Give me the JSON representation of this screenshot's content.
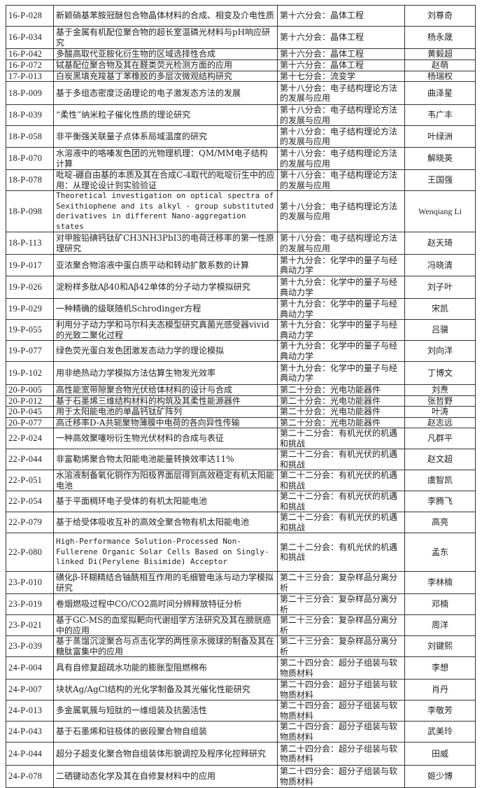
{
  "rows": [
    {
      "code": "16-P-028",
      "title": "新颖硝基苯胺冠醚包合物晶体材料的合成、相变及介电性质",
      "session": "第十六分会：晶体工程",
      "author": "刘尊奇"
    },
    {
      "code": "16-P-034",
      "title": "基于金属有机配位聚合物的超长室温磷光材料与pH响应研究",
      "session": "第十六分会：晶体工程",
      "author": "杨永晟"
    },
    {
      "code": "16-P-042",
      "title": "多酸高取代亚胺化衍生物的区域选择性合成",
      "session": "第十六分会：晶体工程",
      "author": "黄毅超"
    },
    {
      "code": "16-P-072",
      "title": "铽基配位聚合物及其在醛类荧光检测方面的应用",
      "session": "第十六分会：晶体工程",
      "author": "赵萌"
    },
    {
      "code": "17-P-013",
      "title": "白炭黑填充羧基丁苯橡胶的多层次微观结构研究",
      "session": "第十七分会：流变学",
      "author": "杨瑞权"
    },
    {
      "code": "18-P-009",
      "title": "基于多组态密度泛函理论的电子激发态方法的发展",
      "session": "第十八分会：电子结构理论方法的发展与应用",
      "author": "曲泽星"
    },
    {
      "code": "18-P-039",
      "title": "“柔性”纳米粒子催化性质的理论研究",
      "session": "第十八分会：电子结构理论方法的发展与应用",
      "author": "韦广丰"
    },
    {
      "code": "18-P-058",
      "title": "非平衡强关联量子点体系局域温度的研究",
      "session": "第十八分会：电子结构理论方法的发展与应用",
      "author": "叶绿洲"
    },
    {
      "code": "18-P-070",
      "title": "水溶液中的咯嗪发色团的光物理机理：QM/MM电子结构计算",
      "session": "第十八分会：电子结构理论方法的发展与应用",
      "author": "解晓英"
    },
    {
      "code": "18-P-078",
      "title": "吡啶-硼自由基的本质及其在合成C-4取代的吡啶衍生中的应用：从理论设计到实验验证",
      "session": "第十八分会：电子结构理论方法的发展与应用",
      "author": "王国强"
    },
    {
      "code": "18-P-098",
      "title": "Theoretical investigation on optical spectra of Sexithiophene and its alkyl - group substituted derivatives in different Nano-aggregation states",
      "session": "第十八分会：电子结构理论方法的发展与应用",
      "author": "Wenqiang Li"
    },
    {
      "code": "18-P-113",
      "title": "对甲胺铅碘钙钛矿CH3NH3PbI3的电荷迁移率的第一性原理研究",
      "session": "第十八分会：电子结构理论方法的发展与应用",
      "author": "赵天琦"
    },
    {
      "code": "19-P-017",
      "title": "亚浓聚合物溶液中蛋白质平动和转动扩散系数的计算",
      "session": "第十九分会：化学中的量子与经典动力学",
      "author": "冯晓清"
    },
    {
      "code": "19-P-026",
      "title": "淀粉样多肽Aβ40和Aβ42单体的分子动力学模拟研究",
      "session": "第十九分会：化学中的量子与经典动力学",
      "author": "刘子叶"
    },
    {
      "code": "19-P-029",
      "title": "一种精确的级联随机Schrodinger方程",
      "session": "第十九分会：化学中的量子与经典动力学",
      "author": "宋凯"
    },
    {
      "code": "19-P-055",
      "title": "利用分子动力学和马尔科夫态模型研究真菌光感受器vivid的光致二聚化过程",
      "session": "第十九分会：化学中的量子与经典动力学",
      "author": "吕骥"
    },
    {
      "code": "19-P-077",
      "title": "绿色荧光蛋白发色团激发态动力学的理论模拟",
      "session": "第十九分会：化学中的量子与经典动力学",
      "author": "刘向洋"
    },
    {
      "code": "19-P-102",
      "title": "用非绝热动力学模拟方法估算生物发光效率",
      "session": "第十九分会：化学中的量子与经典动力学",
      "author": "丁博文"
    },
    {
      "code": "20-P-005",
      "title": "高性能宽带隙聚合物光伏给体材料的设计与合成",
      "session": "第二十分会：光电功能器件",
      "author": "刘焘"
    },
    {
      "code": "20-P-012",
      "title": "基于石墨烯三维结构材料的构筑及其柔性能源器件",
      "session": "第二十分会：光电功能器件",
      "author": "张哲野"
    },
    {
      "code": "20-P-045",
      "title": "用于太阳能电池的单晶钙钛矿阵列",
      "session": "第二十分会：光电功能器件",
      "author": "叶涛"
    },
    {
      "code": "20-P-077",
      "title": "高迁移率D-A共轭聚物薄膜中电荷的各向异性传输",
      "session": "第二十分会：光电功能器件",
      "author": "赵志远"
    },
    {
      "code": "22-P-024",
      "title": "一种高效聚噻吩衍生物光伏材料的合成与表征",
      "session": "第二十二分会：有机光伏的机遇和挑战",
      "author": "凡群平"
    },
    {
      "code": "22-P-044",
      "title": "非富勒烯聚合物太阳能电池能量转换效率达11%",
      "session": "第二十二分会：有机光伏的机遇和挑战",
      "author": "赵文超"
    },
    {
      "code": "22-P-051",
      "title": "水溶液制备氧化铜作为阳极界面层得到高效稳定有机太阳能电池",
      "session": "第二十二分会：有机光伏的机遇和挑战",
      "author": "虞智凯"
    },
    {
      "code": "22-P-054",
      "title": "基于平面稠环电子受体的有机太阳能电池",
      "session": "第二十二分会：有机光伏的机遇和挑战",
      "author": "李腾飞"
    },
    {
      "code": "22-P-079",
      "title": "基于给受体吸收互补的高效全聚合物有机太阳能电池",
      "session": "第二十二分会：有机光伏的机遇和挑战",
      "author": "高亮"
    },
    {
      "code": "22-P-080",
      "title": "High-Performance Solution-Processed Non-Fullerene Organic Solar Cells Based on Singly-linked Di(Perylene Bisimide) Acceptor",
      "session": "第二十二分会：有机光伏的机遇和挑战",
      "author": "孟东"
    },
    {
      "code": "23-P-010",
      "title": "磺化β-环糊精结合铀酰相互作用的毛细管电泳与动力学模拟研究",
      "session": "第二十三分会：复杂样品分离分析",
      "author": "李林楠"
    },
    {
      "code": "23-P-019",
      "title": "卷烟燃吸过程中CO/CO2高时间分辨释放特征分析",
      "session": "第二十三分会：复杂样品分离分析",
      "author": "邓楠"
    },
    {
      "code": "23-P-021",
      "title": "基于GC-MS的血浆拟靶向代谢组学方法研究及其在膀胱癌中的应用",
      "session": "第二十三分会：复杂样品分离分析",
      "author": "周洋"
    },
    {
      "code": "23-P-039",
      "title": "基于蒸馏沉淀聚合与点击化学的两性亲水微球的制备及其在糖肽富集中的应用",
      "session": "第二十三分会：复杂样品分离分析",
      "author": "刘键熙"
    },
    {
      "code": "24-P-004",
      "title": "具有自修复超疏水功能的膨胀型阻燃棉布",
      "session": "第二十四分会：超分子组装与软物质材料",
      "author": "李想"
    },
    {
      "code": "24-P-007",
      "title": "块状Ag/AgCl结构的光化学制备及其光催化性能研究",
      "session": "第二十四分会：超分子组装与软物质材料",
      "author": "肖丹"
    },
    {
      "code": "24-P-013",
      "title": "多金属氧簇与短肽的一维组装及抗菌活性",
      "session": "第二十四分会：超分子组装与软物质材料",
      "author": "李敬芳"
    },
    {
      "code": "24-P-043",
      "title": "基于石墨烯和驻极体的嵌段聚合物自组装",
      "session": "第二十四分会：超分子组装与软物质材料",
      "author": "武美玲"
    },
    {
      "code": "24-P-044",
      "title": "超分子超支化聚合物自组装体形貌调控及程序化控释研究",
      "session": "第二十四分会：超分子组装与软物质材料",
      "author": "田威"
    },
    {
      "code": "24-P-078",
      "title": "二硒键动态化学及其在自修复材料中的应用",
      "session": "第二十四分会：超分子组装与软物质材料",
      "author": "姬少博"
    }
  ]
}
